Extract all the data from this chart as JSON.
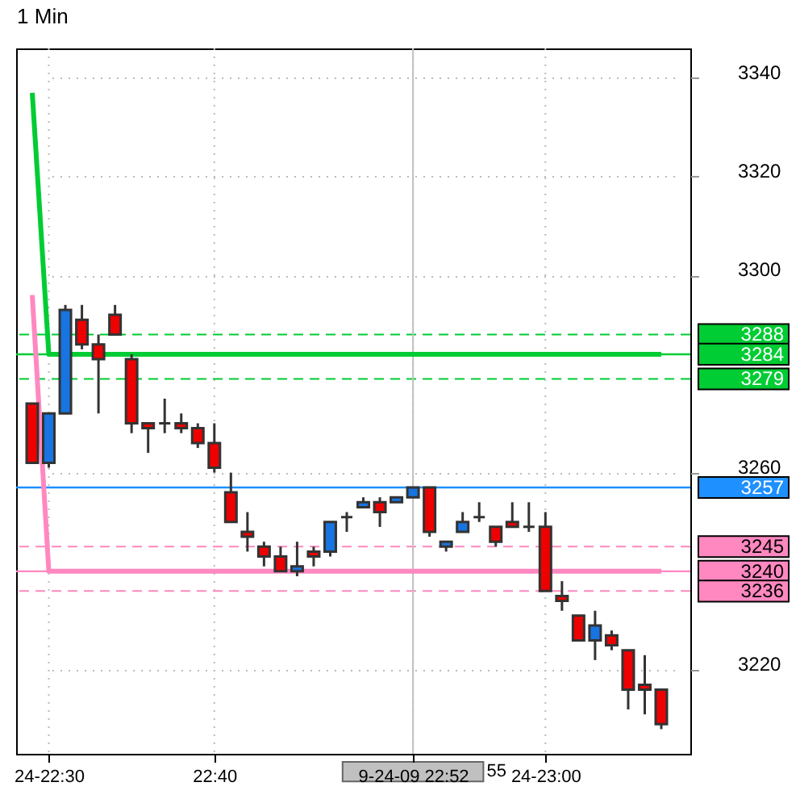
{
  "chart_data": {
    "type": "candlestick",
    "title": "1 Min",
    "categories": [
      null,
      "24-22:30",
      null,
      null,
      null,
      null,
      null,
      null,
      null,
      null,
      null,
      "22:40",
      null,
      null,
      null,
      null,
      null,
      null,
      null,
      null,
      null,
      null,
      null,
      "9-24-09 22:52",
      null,
      null,
      null,
      null,
      null,
      null,
      null,
      "24-23:00",
      null,
      null,
      null,
      null,
      null,
      null,
      null
    ],
    "ohlc": [
      [
        3274,
        3274,
        3262,
        3262
      ],
      [
        3262,
        3272,
        3261,
        3272
      ],
      [
        3272,
        3294,
        3272,
        3293
      ],
      [
        3291,
        3294,
        3285,
        3286
      ],
      [
        3286,
        3288,
        3272,
        3283
      ],
      [
        3292,
        3294,
        3288,
        3288
      ],
      [
        3283,
        3284,
        3268,
        3270
      ],
      [
        3270,
        3270,
        3264,
        3269
      ],
      [
        3270,
        3275,
        3268,
        3270
      ],
      [
        3270,
        3272,
        3268,
        3269
      ],
      [
        3269,
        3270,
        3265,
        3266
      ],
      [
        3266,
        3270,
        3260,
        3261
      ],
      [
        3256,
        3260,
        3250,
        3250
      ],
      [
        3248,
        3252,
        3244,
        3247
      ],
      [
        3245,
        3246,
        3241,
        3243
      ],
      [
        3243,
        3245,
        3240,
        3240
      ],
      [
        3240,
        3246,
        3239,
        3241
      ],
      [
        3244,
        3245,
        3241,
        3243
      ],
      [
        3244,
        3250,
        3243,
        3250
      ],
      [
        3251,
        3252,
        3248,
        3251
      ],
      [
        3253,
        3255,
        3253,
        3254
      ],
      [
        3254,
        3255,
        3249,
        3252
      ],
      [
        3254,
        3255,
        3254,
        3255
      ],
      [
        3255,
        3257,
        3255,
        3257
      ],
      [
        3257,
        3257,
        3247,
        3248
      ],
      [
        3245,
        3246,
        3244,
        3246
      ],
      [
        3248,
        3252,
        3248,
        3250
      ],
      [
        3251,
        3254,
        3250,
        3251
      ],
      [
        3249,
        3249,
        3245,
        3246
      ],
      [
        3250,
        3254,
        3249,
        3249
      ],
      [
        3249,
        3254,
        3248,
        3249
      ],
      [
        3249,
        3252,
        3236,
        3236
      ],
      [
        3235,
        3238,
        3232,
        3234
      ],
      [
        3231,
        3231,
        3226,
        3226
      ],
      [
        3226,
        3232,
        3222,
        3229
      ],
      [
        3227,
        3228,
        3224,
        3225
      ],
      [
        3224,
        3224,
        3212,
        3216
      ],
      [
        3217,
        3223,
        3211,
        3216
      ],
      [
        3216,
        3216,
        3208,
        3209
      ]
    ],
    "series": [
      {
        "type": "line",
        "color": "#00cc33",
        "values": [
          3337,
          3284,
          null,
          3284,
          3284,
          3284,
          3284,
          3284,
          3284,
          3284,
          3284,
          3284,
          3284,
          3284,
          3284,
          3284,
          3284,
          3284,
          3284,
          3284,
          3284,
          3284,
          3284,
          3284,
          3284,
          3284,
          3284,
          3284,
          3284,
          3284,
          3284,
          3284,
          3284,
          3284,
          3284,
          3284,
          3284,
          3284,
          3284
        ]
      },
      {
        "type": "line",
        "color": "#ff88c0",
        "values": [
          3296,
          3240,
          3240,
          3240,
          3240,
          3240,
          3240,
          3240,
          3240,
          3240,
          3240,
          3240,
          3240,
          3240,
          3240,
          3240,
          3240,
          3240,
          3240,
          3240,
          3240,
          3240,
          3240,
          3240,
          3240,
          3240,
          3240,
          3240,
          3240,
          3240,
          3240,
          null,
          3240,
          3240,
          3240,
          3240,
          3240,
          3240,
          3240
        ]
      }
    ],
    "ylim": [
      3203,
      3346
    ],
    "yticks": [
      3220,
      3260,
      3300,
      3320,
      3340
    ],
    "ref_lines": [
      {
        "axis": "y",
        "value": 3288,
        "label": "3288",
        "color": "#00cc33",
        "line_style": "dashed"
      },
      {
        "axis": "y",
        "value": 3284,
        "label": "3284",
        "color": "#00cc33",
        "line_style": "solid"
      },
      {
        "axis": "y",
        "value": 3279,
        "label": "3279",
        "color": "#00cc33",
        "line_style": "dashed"
      },
      {
        "axis": "y",
        "value": 3257,
        "label": "3257",
        "color": "#1e90ff",
        "line_style": "solid"
      },
      {
        "axis": "y",
        "value": 3245,
        "label": "3245",
        "color": "#ff88c0",
        "line_style": "dashed"
      },
      {
        "axis": "y",
        "value": 3240,
        "label": "3240",
        "color": "#ff88c0",
        "line_style": "solid"
      },
      {
        "axis": "y",
        "value": 3236,
        "label": "3236",
        "color": "#ff88c0",
        "line_style": "dashed"
      },
      {
        "axis": "x",
        "value": "9-24-09 22:52",
        "color": "#c0c0c0",
        "line_style": "solid"
      }
    ],
    "annotations": [
      "55"
    ],
    "grid": true
  }
}
